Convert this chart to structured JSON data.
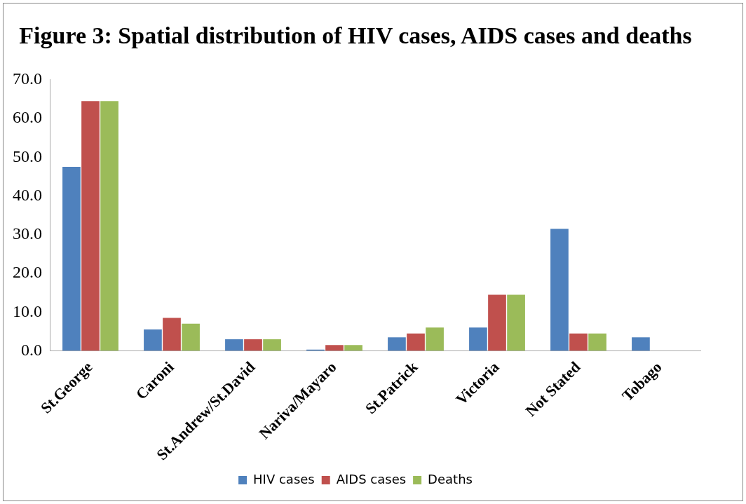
{
  "chart_data": {
    "type": "bar",
    "title": "Figure 3: Spatial distribution of HIV cases, AIDS cases and deaths",
    "categories": [
      "St.George",
      "Caroni",
      "St.Andrew/St.David",
      "Nariva/Mayaro",
      "St.Patrick",
      "Victoria",
      "Not Stated",
      "Tobago"
    ],
    "series": [
      {
        "name": "HIV cases",
        "color": "#4f81bd",
        "values": [
          47.5,
          5.5,
          3,
          0.3,
          3.5,
          6,
          31.5,
          3.5
        ]
      },
      {
        "name": "AIDS cases",
        "color": "#c0504d",
        "values": [
          64.5,
          8.5,
          3,
          1.5,
          4.5,
          14.5,
          4.5,
          null
        ]
      },
      {
        "name": "Deaths",
        "color": "#9bbb59",
        "values": [
          64.5,
          7,
          3,
          1.5,
          6,
          14.5,
          4.5,
          null
        ]
      }
    ],
    "ylim": [
      0,
      70
    ],
    "yticks": [
      {
        "value": 0,
        "label": "0.0"
      },
      {
        "value": 10,
        "label": "10.0"
      },
      {
        "value": 20,
        "label": "20.0"
      },
      {
        "value": 30,
        "label": "30.0"
      },
      {
        "value": 40,
        "label": "40.0"
      },
      {
        "value": 50,
        "label": "50.0"
      },
      {
        "value": 60,
        "label": "60.0"
      },
      {
        "value": 70,
        "label": "70.0"
      }
    ],
    "legend": "bottom"
  }
}
